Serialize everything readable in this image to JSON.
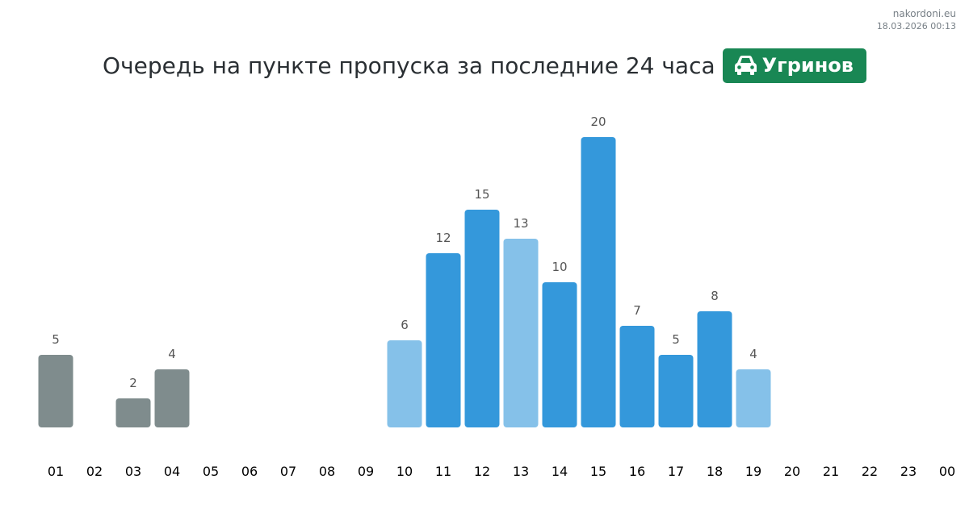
{
  "site": {
    "name": "nakordoni.eu",
    "timestamp": "18.03.2026 00:13"
  },
  "header": {
    "title": "Очередь на пункте пропуска за последние 24 часа",
    "badge": {
      "label": "Угринов",
      "icon": "car-icon",
      "color": "#198754"
    }
  },
  "colors": {
    "previous_day": "#7f8c8d",
    "full": "#3498db",
    "partial": "#85c1e9",
    "value_label": "#555555",
    "hour_label": "#000000"
  },
  "chart_data": {
    "type": "bar",
    "categories": [
      "01",
      "02",
      "03",
      "04",
      "05",
      "06",
      "07",
      "08",
      "09",
      "10",
      "11",
      "12",
      "13",
      "14",
      "15",
      "16",
      "17",
      "18",
      "19",
      "20",
      "21",
      "22",
      "23",
      "00"
    ],
    "values": [
      5,
      null,
      2,
      4,
      null,
      null,
      null,
      null,
      null,
      6,
      12,
      15,
      13,
      10,
      20,
      7,
      5,
      8,
      4,
      null,
      null,
      null,
      null,
      null
    ],
    "bar_styles": [
      "previous_day",
      null,
      "previous_day",
      "previous_day",
      null,
      null,
      null,
      null,
      null,
      "partial",
      "full",
      "full",
      "partial",
      "full",
      "full",
      "full",
      "full",
      "full",
      "partial",
      null,
      null,
      null,
      null,
      null
    ],
    "ylim": [
      0,
      20
    ],
    "grid": false,
    "title": "Очередь на пункте пропуска за последние 24 часа"
  }
}
